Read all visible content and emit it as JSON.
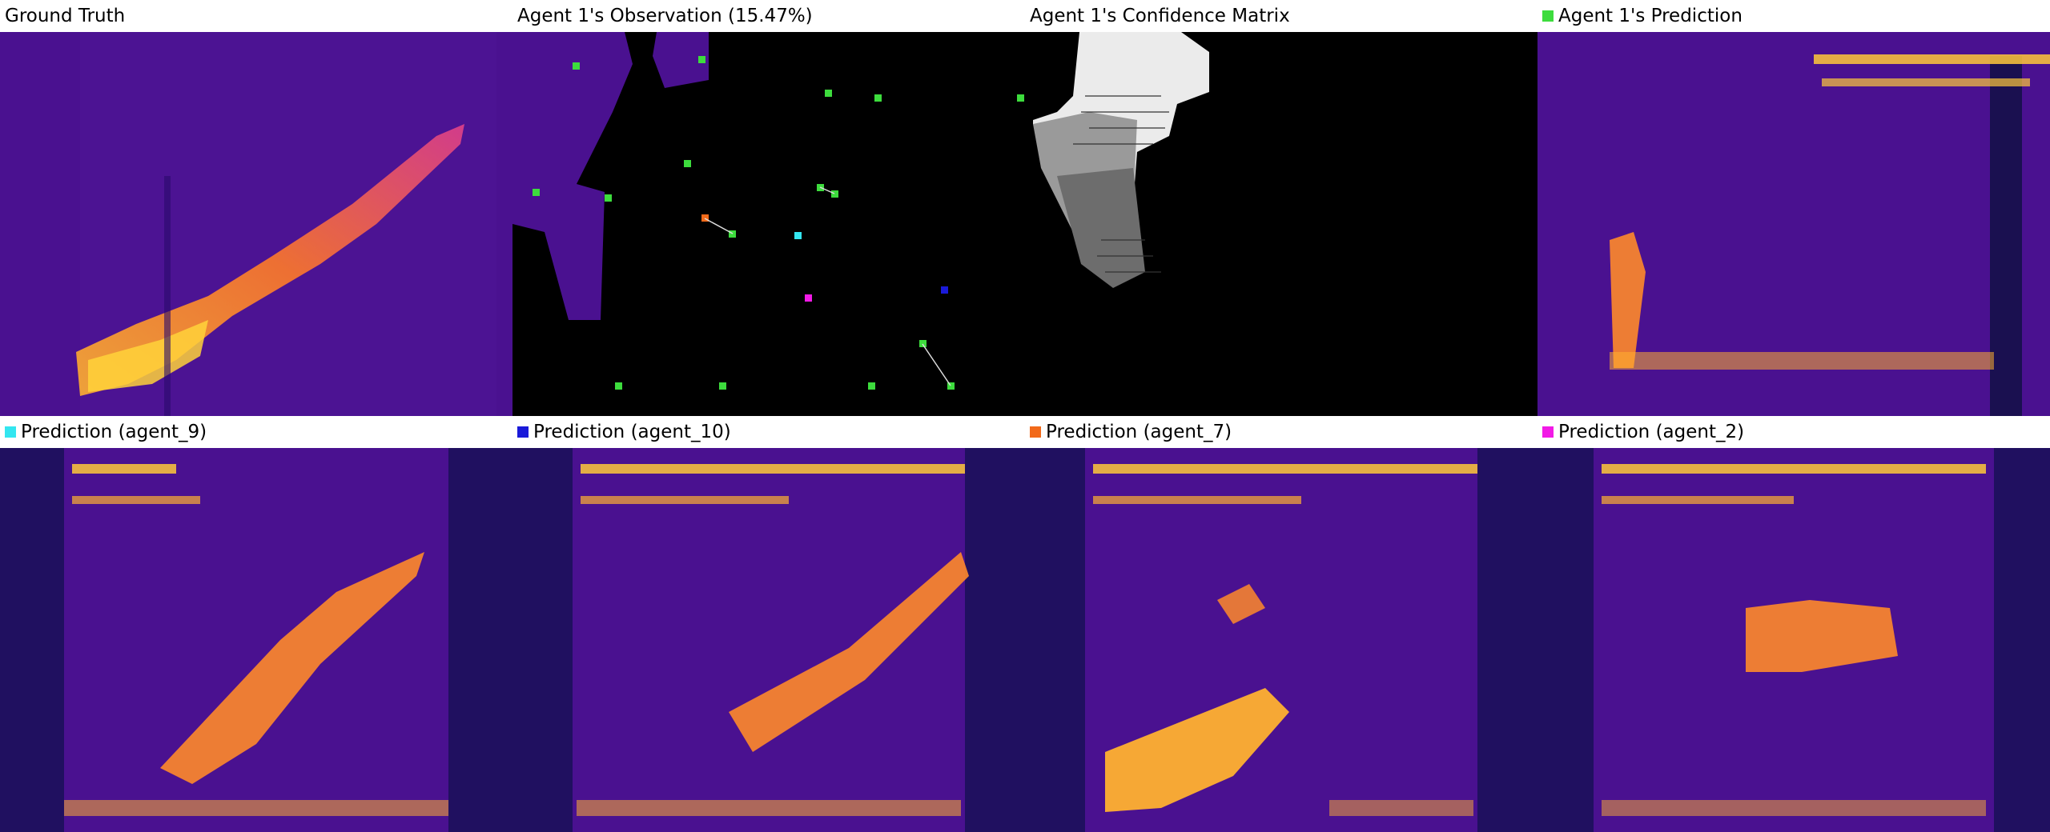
{
  "panels": {
    "ground_truth": {
      "title": "Ground Truth"
    },
    "observation": {
      "title": "Agent 1's Observation (15.47%)"
    },
    "confidence": {
      "title": "Agent 1's Confidence Matrix"
    },
    "agent1_prediction": {
      "title": "Agent 1's Prediction",
      "color": "#3ddc3d"
    },
    "agent9": {
      "title": "Prediction (agent_9)",
      "color": "#33e6f0"
    },
    "agent10": {
      "title": "Prediction (agent_10)",
      "color": "#1a1ad9"
    },
    "agent7": {
      "title": "Prediction (agent_7)",
      "color": "#f26a1a"
    },
    "agent2": {
      "title": "Prediction (agent_2)",
      "color": "#f21ae6"
    }
  },
  "colors": {
    "background_purple": "#4a1190",
    "flare_yellow": "#ffd23a",
    "flare_orange": "#ff8a2a",
    "agent_green": "#3ddc3d"
  }
}
